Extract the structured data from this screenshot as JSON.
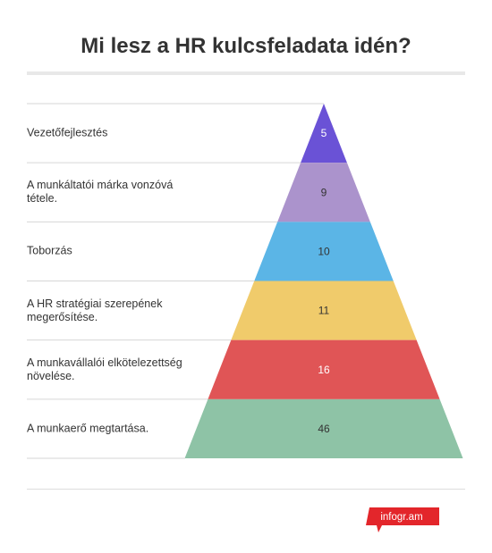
{
  "title": "Mi lesz a HR kulcsfeladata idén?",
  "brand": {
    "text": "infogr.am",
    "color": "#e3262b"
  },
  "chart_data": {
    "type": "pyramid",
    "title": "Mi lesz a HR kulcsfeladata idén?",
    "categories": [
      "Vezetőfejlesztés",
      "A munkáltatói márka vonzóvá tétele.",
      "Toborzás",
      "A HR stratégiai szerepének megerősítése.",
      "A munkavállalói elkötelezettség növelése.",
      "A munkaerő megtartása."
    ],
    "values": [
      5,
      9,
      10,
      11,
      16,
      46
    ],
    "colors": [
      "#6a52d6",
      "#ab93cc",
      "#5bb5e6",
      "#f0cb6b",
      "#e05556",
      "#8ec3a6"
    ],
    "value_text_colors": [
      "#ffffff",
      "#333333",
      "#333333",
      "#333333",
      "#ffffff",
      "#333333"
    ],
    "legend": "none"
  }
}
